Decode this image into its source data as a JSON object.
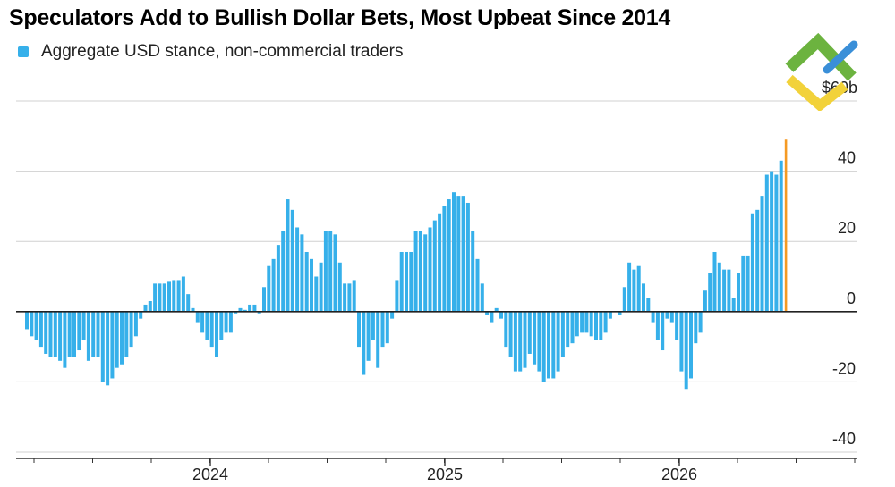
{
  "title": "Speculators Add to Bullish Dollar Bets, Most Upbeat Since 2014",
  "legend": {
    "label": "Aggregate USD stance, non-commercial traders",
    "color": "#36b0ea"
  },
  "colors": {
    "bar": "#36b0ea",
    "highlight": "#f59a23",
    "grid": "#d0d0d0",
    "zero_line": "#222222"
  },
  "logo_icon": "green-blue-yellow-chevron-logo",
  "chart_data": {
    "type": "bar",
    "title": "Speculators Add to Bullish Dollar Bets, Most Upbeat Since 2014",
    "ylabel": "",
    "xlabel": "",
    "y_unit_label": "$60b",
    "ylim": [
      -40,
      60
    ],
    "y_ticks": [
      40,
      20,
      0,
      -20,
      -40
    ],
    "x_ticks": [
      "2024",
      "2025",
      "2026"
    ],
    "grid": true,
    "legend_position": "top-left",
    "series": [
      {
        "name": "Aggregate USD stance, non-commercial traders",
        "values": [
          -5,
          -7,
          -8,
          -10,
          -12,
          -13,
          -13,
          -14,
          -16,
          -13,
          -13,
          -11,
          -8,
          -14,
          -13,
          -13,
          -20,
          -21,
          -19,
          -16,
          -15,
          -13,
          -10,
          -7,
          -2,
          2,
          3,
          8,
          8,
          8,
          8.5,
          9,
          9,
          10,
          5,
          1,
          -3,
          -6,
          -8,
          -10,
          -13,
          -8,
          -6,
          -6,
          -0.5,
          1,
          0.5,
          2,
          2,
          -0.5,
          7,
          13,
          15,
          19,
          23,
          32,
          29,
          24,
          22,
          17,
          15,
          10,
          14,
          23,
          23,
          22,
          14,
          8,
          8,
          9,
          -10,
          -18,
          -14,
          -8,
          -16,
          -10,
          -9,
          -2,
          9,
          17,
          17,
          17,
          23,
          23,
          22,
          24,
          26,
          28,
          30,
          32,
          34,
          33,
          33,
          31,
          23,
          15,
          8,
          -1,
          -3,
          1,
          -2,
          -10,
          -13,
          -17,
          -17,
          -16,
          -12,
          -15,
          -17,
          -20,
          -19,
          -19,
          -17,
          -13,
          -10,
          -9,
          -7,
          -6,
          -6,
          -7,
          -8,
          -8,
          -6,
          -2,
          0,
          -1,
          7,
          14,
          12,
          13,
          8,
          4,
          -3,
          -8,
          -11,
          -2,
          -3,
          -8,
          -17,
          -22,
          -19,
          -9,
          -6,
          6,
          11,
          17,
          14,
          12,
          12,
          4,
          11,
          16,
          16,
          28,
          29,
          33,
          39,
          40,
          39,
          43
        ],
        "last_value": 49,
        "last_color": "#f59a23"
      }
    ]
  }
}
